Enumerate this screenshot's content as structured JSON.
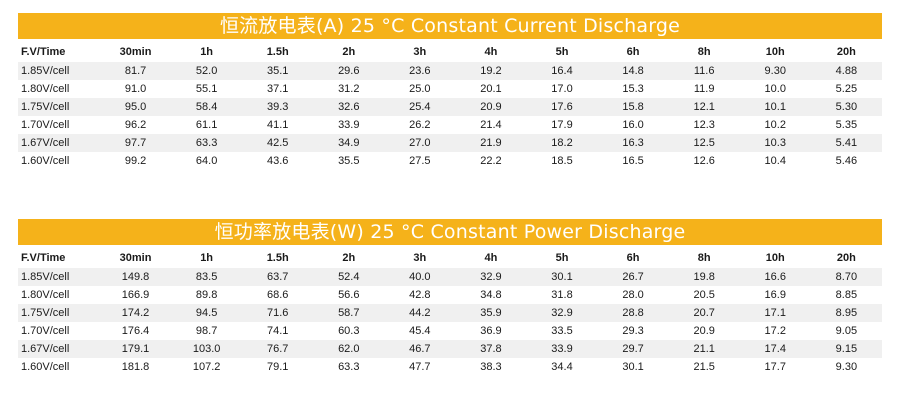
{
  "current": {
    "title": "恒流放电表(A) 25 °C  Constant Current Discharge",
    "headers": [
      "F.V/Time",
      "30min",
      "1h",
      "1.5h",
      "2h",
      "3h",
      "4h",
      "5h",
      "6h",
      "8h",
      "10h",
      "20h"
    ],
    "rows": [
      [
        "1.85V/cell",
        "81.7",
        "52.0",
        "35.1",
        "29.6",
        "23.6",
        "19.2",
        "16.4",
        "14.8",
        "11.6",
        "9.30",
        "4.88"
      ],
      [
        "1.80V/cell",
        "91.0",
        "55.1",
        "37.1",
        "31.2",
        "25.0",
        "20.1",
        "17.0",
        "15.3",
        "11.9",
        "10.0",
        "5.25"
      ],
      [
        "1.75V/cell",
        "95.0",
        "58.4",
        "39.3",
        "32.6",
        "25.4",
        "20.9",
        "17.6",
        "15.8",
        "12.1",
        "10.1",
        "5.30"
      ],
      [
        "1.70V/cell",
        "96.2",
        "61.1",
        "41.1",
        "33.9",
        "26.2",
        "21.4",
        "17.9",
        "16.0",
        "12.3",
        "10.2",
        "5.35"
      ],
      [
        "1.67V/cell",
        "97.7",
        "63.3",
        "42.5",
        "34.9",
        "27.0",
        "21.9",
        "18.2",
        "16.3",
        "12.5",
        "10.3",
        "5.41"
      ],
      [
        "1.60V/cell",
        "99.2",
        "64.0",
        "43.6",
        "35.5",
        "27.5",
        "22.2",
        "18.5",
        "16.5",
        "12.6",
        "10.4",
        "5.46"
      ]
    ]
  },
  "power": {
    "title": "恒功率放电表(W) 25 °C  Constant Power Discharge",
    "headers": [
      "F.V/Time",
      "30min",
      "1h",
      "1.5h",
      "2h",
      "3h",
      "4h",
      "5h",
      "6h",
      "8h",
      "10h",
      "20h"
    ],
    "rows": [
      [
        "1.85V/cell",
        "149.8",
        "83.5",
        "63.7",
        "52.4",
        "40.0",
        "32.9",
        "30.1",
        "26.7",
        "19.8",
        "16.6",
        "8.70"
      ],
      [
        "1.80V/cell",
        "166.9",
        "89.8",
        "68.6",
        "56.6",
        "42.8",
        "34.8",
        "31.8",
        "28.0",
        "20.5",
        "16.9",
        "8.85"
      ],
      [
        "1.75V/cell",
        "174.2",
        "94.5",
        "71.6",
        "58.7",
        "44.2",
        "35.9",
        "32.9",
        "28.8",
        "20.7",
        "17.1",
        "8.95"
      ],
      [
        "1.70V/cell",
        "176.4",
        "98.7",
        "74.1",
        "60.3",
        "45.4",
        "36.9",
        "33.5",
        "29.3",
        "20.9",
        "17.2",
        "9.05"
      ],
      [
        "1.67V/cell",
        "179.1",
        "103.0",
        "76.7",
        "62.0",
        "46.7",
        "37.8",
        "33.9",
        "29.7",
        "21.1",
        "17.4",
        "9.15"
      ],
      [
        "1.60V/cell",
        "181.8",
        "107.2",
        "79.1",
        "63.3",
        "47.7",
        "38.3",
        "34.4",
        "30.1",
        "21.5",
        "17.7",
        "9.30"
      ]
    ]
  },
  "colors": {
    "banner": "#f5b21a",
    "banner_text": "#ffffff",
    "stripe": "#f0f0f0"
  }
}
